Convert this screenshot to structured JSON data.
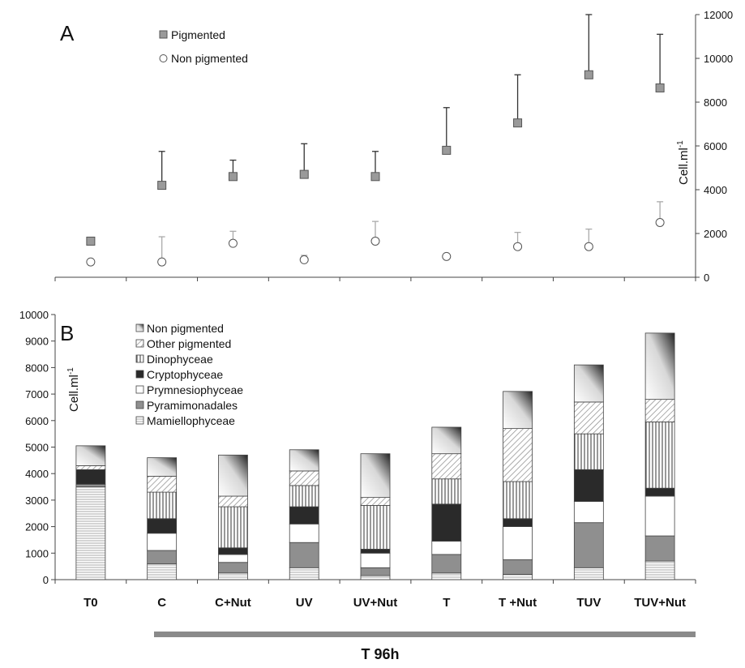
{
  "chart_data": [
    {
      "panel": "A",
      "type": "scatter",
      "yaxis_side": "right",
      "ylabel": "Cell.ml",
      "ylabel_superscript": "-1",
      "ylim": [
        0,
        12000
      ],
      "yticks": [
        0,
        2000,
        4000,
        6000,
        8000,
        10000,
        12000
      ],
      "legend_position": "top-left",
      "series": [
        {
          "name": "Pigmented",
          "marker": "square",
          "color": "#9a9a9a",
          "values": [
            1650,
            4200,
            4600,
            4700,
            4600,
            5800,
            7050,
            9250,
            8650
          ],
          "error_upper": [
            null,
            1550,
            750,
            1400,
            1150,
            1950,
            2200,
            2750,
            2450
          ]
        },
        {
          "name": "Non pigmented",
          "marker": "circle",
          "color": "#ffffff",
          "values": [
            700,
            700,
            1550,
            800,
            1650,
            950,
            1400,
            1400,
            2500
          ],
          "error_upper": [
            null,
            1150,
            550,
            200,
            900,
            null,
            650,
            800,
            950
          ]
        }
      ]
    },
    {
      "panel": "B",
      "type": "bar",
      "stacked": true,
      "ylabel": "Cell.ml",
      "ylabel_superscript": "-1",
      "ylim": [
        0,
        10000
      ],
      "yticks": [
        0,
        1000,
        2000,
        3000,
        4000,
        5000,
        6000,
        7000,
        8000,
        9000,
        10000
      ],
      "legend_position": "top-left",
      "categories": [
        "T0",
        "C",
        "C+Nut",
        "UV",
        "UV+Nut",
        "T",
        "T +Nut",
        "TUV",
        "TUV+Nut"
      ],
      "series": [
        {
          "name": "Mamiellophyceae",
          "pattern": "hlines",
          "values": [
            3500,
            600,
            250,
            450,
            150,
            250,
            200,
            450,
            700
          ]
        },
        {
          "name": "Pyramimonadales",
          "pattern": "gray",
          "values": [
            100,
            500,
            400,
            950,
            300,
            700,
            550,
            1700,
            950
          ]
        },
        {
          "name": "Prymnesiophyceae",
          "pattern": "white",
          "values": [
            0,
            650,
            300,
            700,
            550,
            500,
            1250,
            800,
            1500
          ]
        },
        {
          "name": "Cryptophyceae",
          "pattern": "black",
          "values": [
            550,
            550,
            250,
            650,
            150,
            1400,
            300,
            1200,
            300
          ]
        },
        {
          "name": "Dinophyceae",
          "pattern": "vlines",
          "values": [
            0,
            1000,
            1550,
            800,
            1650,
            950,
            1400,
            1350,
            2500
          ]
        },
        {
          "name": "Other pigmented",
          "pattern": "diag",
          "values": [
            150,
            600,
            400,
            550,
            300,
            950,
            2000,
            1200,
            850
          ]
        },
        {
          "name": "Non pigmented",
          "pattern": "gradient",
          "values": [
            750,
            700,
            1550,
            800,
            1650,
            1000,
            1400,
            1400,
            2500
          ]
        }
      ]
    }
  ],
  "panel_labels": {
    "a": "A",
    "b": "B"
  },
  "time_label": "T 96h"
}
